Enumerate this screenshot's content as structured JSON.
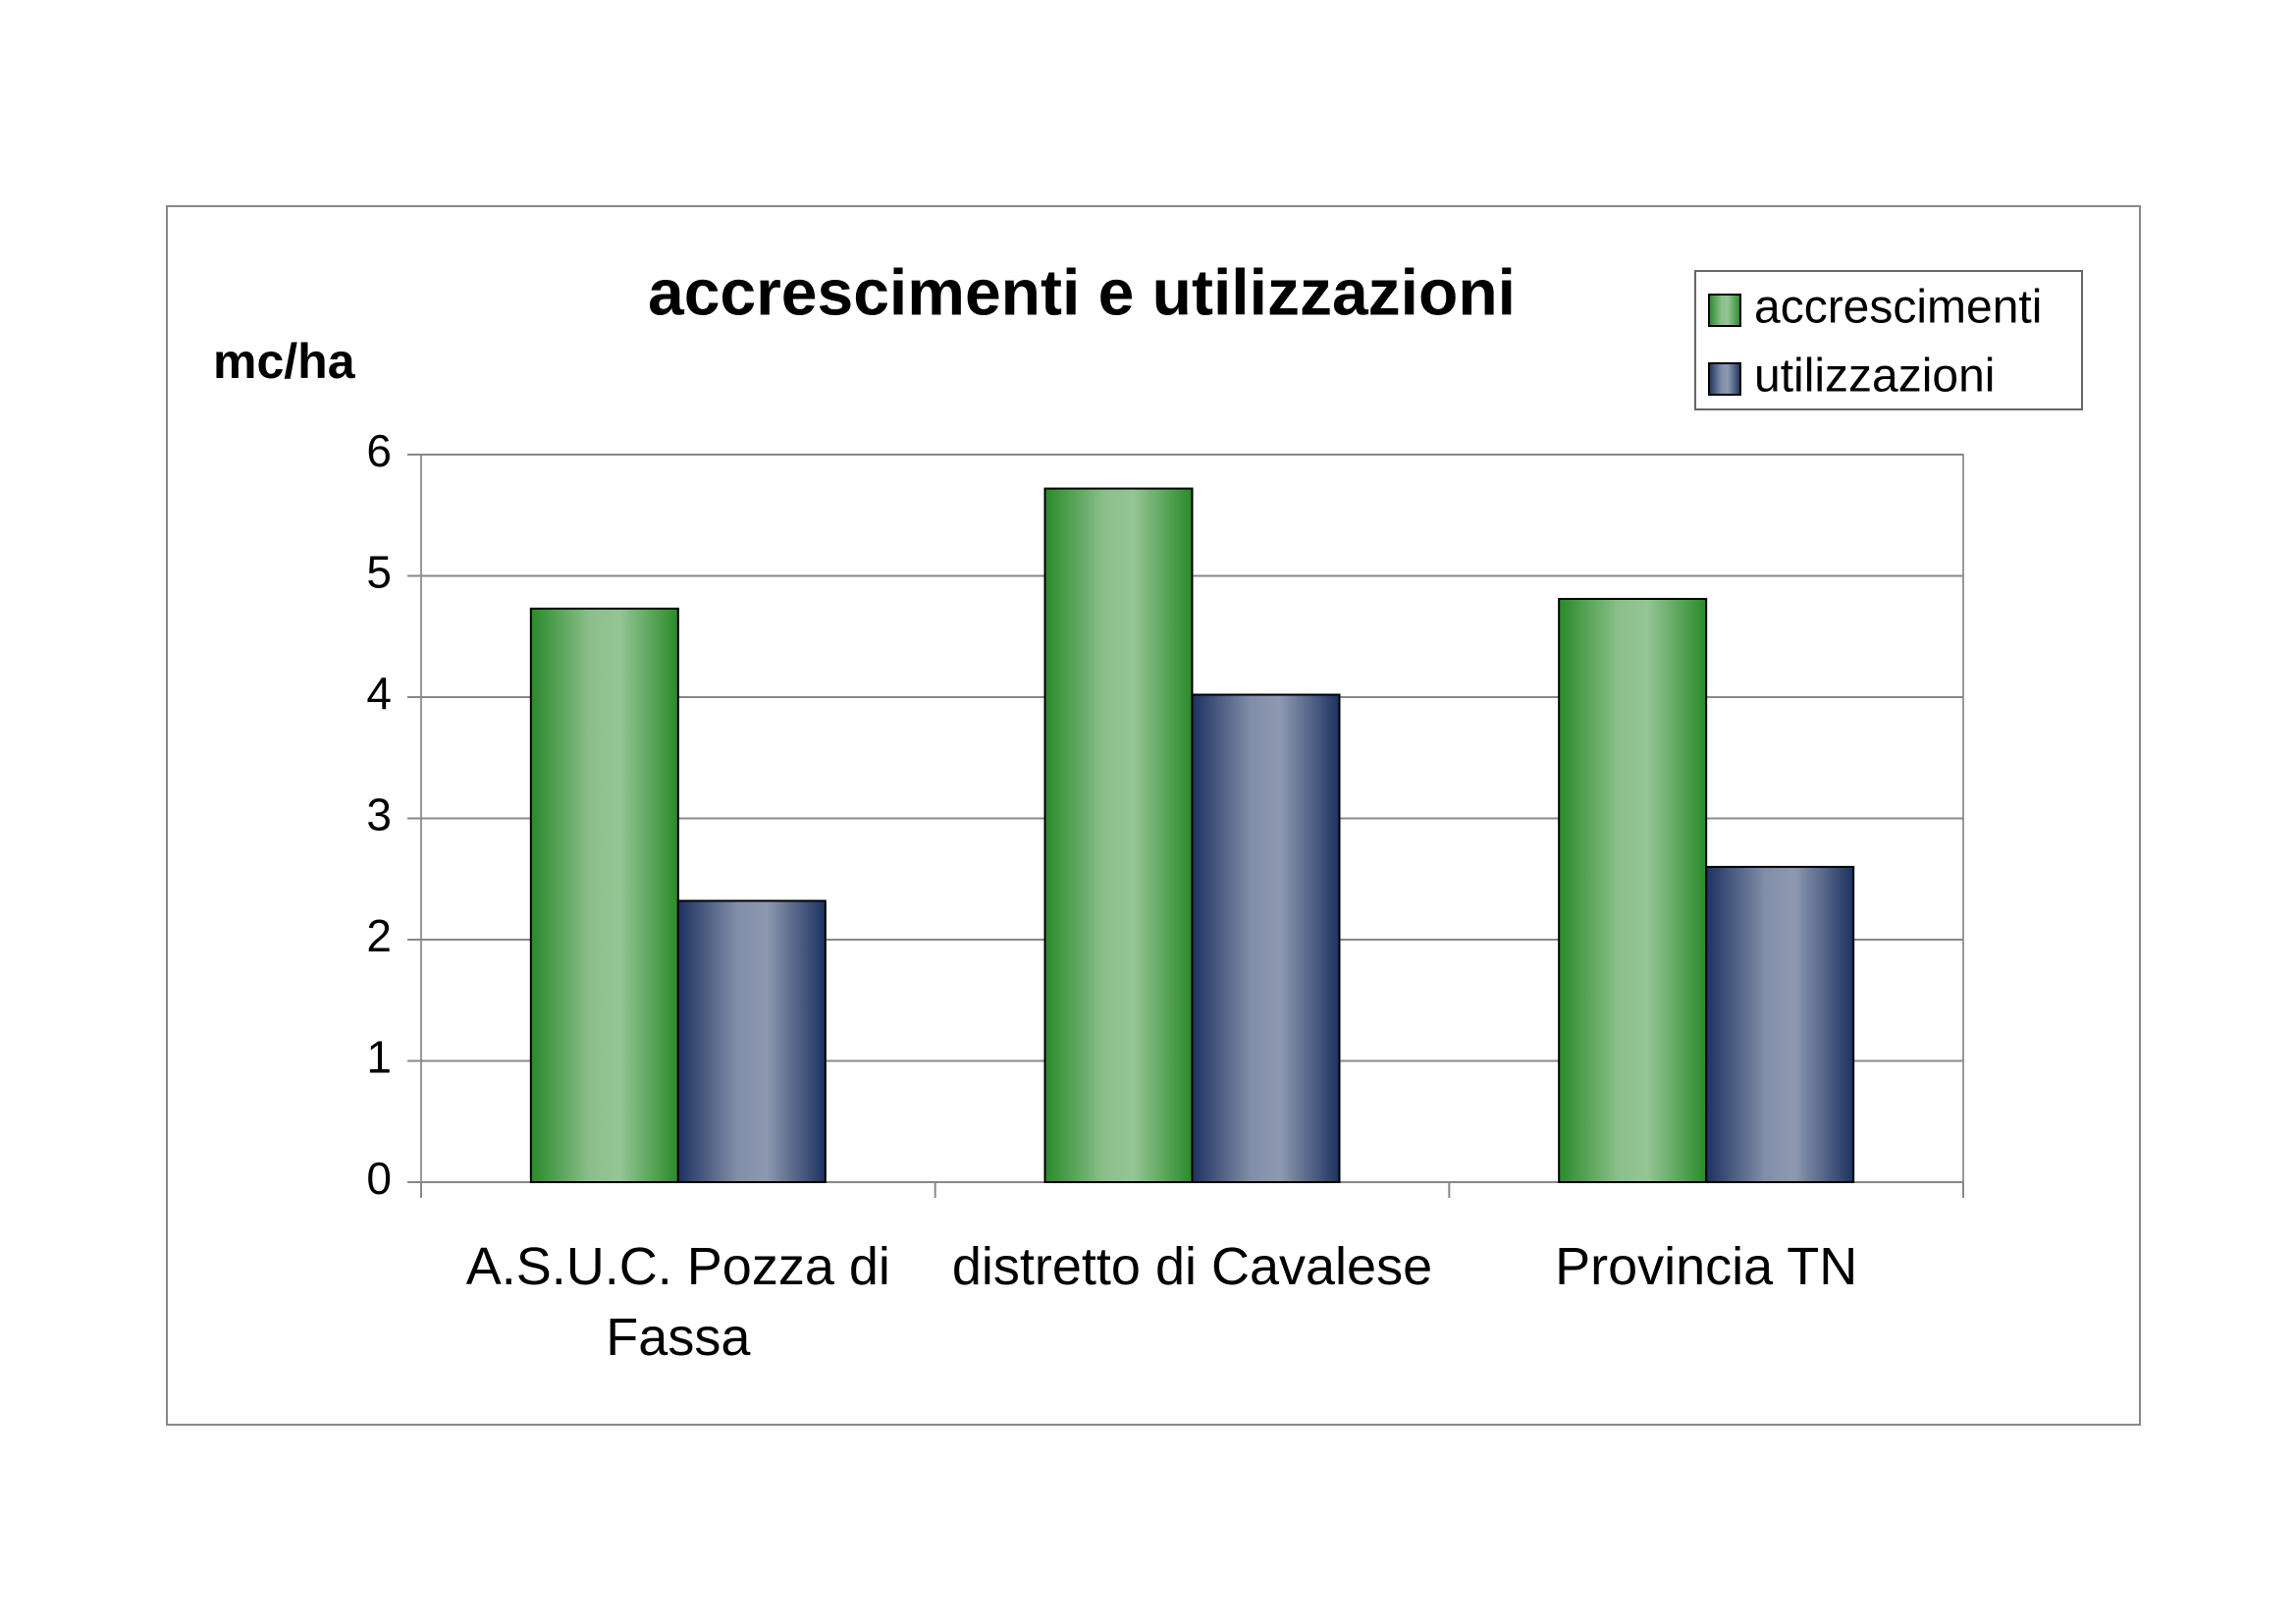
{
  "chart_data": {
    "type": "bar",
    "title": "accrescimenti e utilizzazioni",
    "y_label": "mc/ha",
    "categories": [
      "A.S.U.C. Pozza di Fassa",
      "distretto di Cavalese",
      "Provincia TN"
    ],
    "series": [
      {
        "name": "accrescimenti",
        "color": "#2a8a2a",
        "values": [
          4.73,
          5.72,
          4.81
        ]
      },
      {
        "name": "utilizzazioni",
        "color": "#1c3260",
        "values": [
          2.32,
          4.02,
          2.6
        ]
      }
    ],
    "ylim": [
      0,
      6
    ],
    "yticks": [
      0,
      1,
      2,
      3,
      4,
      5,
      6
    ],
    "grid": true,
    "legend": "top-right"
  }
}
